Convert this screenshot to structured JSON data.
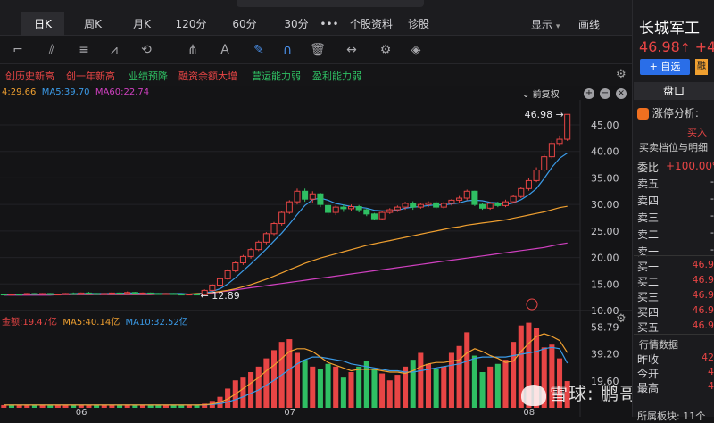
{
  "header": {
    "tabs": [
      {
        "label": "日K",
        "active": true
      },
      {
        "label": "周K",
        "active": false
      },
      {
        "label": "月K",
        "active": false
      },
      {
        "label": "120分",
        "active": false
      },
      {
        "label": "60分",
        "active": false
      },
      {
        "label": "30分",
        "active": false
      },
      {
        "label": "•••",
        "active": false
      },
      {
        "label": "个股资料",
        "active": false
      },
      {
        "label": "诊股",
        "active": false
      }
    ],
    "display_label": "显示",
    "draw_label": "画线"
  },
  "toolbar": {
    "icons": [
      "crosshair-icon",
      "fib-fan-icon",
      "fib-lines-icon",
      "wave-icon",
      "cycle-icon",
      "pitchfork-icon",
      "text-icon",
      "brush-icon",
      "magnet-icon",
      "trash-icon",
      "measure-icon",
      "settings-icon",
      "layers-icon"
    ]
  },
  "signals": [
    "创历史新高",
    "创一年新高",
    "业绩预降",
    "融资余额大增",
    "营运能力弱",
    "盈利能力弱"
  ],
  "price_legend": {
    "ma_first": "4:29.66",
    "ma5": "MA5:39.70",
    "ma60": "MA60:22.74",
    "adjust": "前复权"
  },
  "volume_legend": {
    "amount": "金额:19.47亿",
    "ma5": "MA5:40.14亿",
    "ma10": "MA10:32.52亿"
  },
  "stock": {
    "name": "长城军工",
    "price": "46.98",
    "change": "+4.",
    "add_watch": "+ 自选",
    "margin": "融"
  },
  "panel": {
    "title": "盘口",
    "limit_up_label": "涨停分析:",
    "buy_tag": "买入",
    "order_book_title": "买卖档位与明细",
    "ratio_label": "委比",
    "ratio_value": "+100.00%",
    "asks": [
      {
        "label": "卖五",
        "value": "-"
      },
      {
        "label": "卖四",
        "value": "-"
      },
      {
        "label": "卖三",
        "value": "-"
      },
      {
        "label": "卖二",
        "value": "-"
      },
      {
        "label": "卖一",
        "value": "-"
      }
    ],
    "bids": [
      {
        "label": "买一",
        "value": "46.9"
      },
      {
        "label": "买二",
        "value": "46.9"
      },
      {
        "label": "买三",
        "value": "46.9"
      },
      {
        "label": "买四",
        "value": "46.9"
      },
      {
        "label": "买五",
        "value": "46.9"
      }
    ],
    "quote_title": "行情数据",
    "quotes": [
      {
        "label": "昨收",
        "value": "42"
      },
      {
        "label": "今开",
        "value": "4"
      },
      {
        "label": "最高",
        "value": "4"
      }
    ],
    "sector_label": "所属板块: 11个"
  },
  "watermark": "雪球: 鹏哥投研",
  "chart_data": [
    {
      "type": "candlestick",
      "yaxis_labels": [
        "45.00",
        "40.00",
        "35.00",
        "30.00",
        "25.00",
        "20.00",
        "15.00",
        "10.00"
      ],
      "ylim": [
        10,
        47.5
      ],
      "xaxis_labels": [
        "06",
        "07",
        "08"
      ],
      "annotations": {
        "high": "46.98",
        "low": "12.89"
      },
      "candles": [
        [
          13.1,
          13.0,
          12.9,
          13.2
        ],
        [
          13.0,
          13.1,
          12.9,
          13.2
        ],
        [
          13.1,
          13.0,
          12.9,
          13.2
        ],
        [
          13.0,
          13.2,
          12.9,
          13.3
        ],
        [
          13.2,
          13.1,
          13.0,
          13.3
        ],
        [
          13.1,
          13.2,
          13.0,
          13.3
        ],
        [
          13.2,
          13.0,
          12.9,
          13.3
        ],
        [
          13.0,
          13.1,
          12.9,
          13.2
        ],
        [
          13.1,
          13.2,
          13.0,
          13.3
        ],
        [
          13.2,
          13.1,
          13.0,
          13.4
        ],
        [
          13.1,
          13.3,
          13.0,
          13.4
        ],
        [
          13.3,
          13.2,
          13.1,
          13.5
        ],
        [
          13.2,
          13.1,
          13.0,
          13.3
        ],
        [
          13.1,
          13.2,
          13.0,
          13.3
        ],
        [
          13.2,
          13.3,
          13.1,
          13.5
        ],
        [
          13.3,
          13.2,
          13.1,
          13.4
        ],
        [
          13.2,
          13.4,
          13.1,
          13.6
        ],
        [
          13.4,
          13.2,
          13.1,
          13.5
        ],
        [
          13.2,
          13.3,
          13.1,
          13.4
        ],
        [
          13.3,
          13.2,
          13.1,
          13.4
        ],
        [
          13.2,
          13.1,
          13.0,
          13.3
        ],
        [
          13.1,
          13.2,
          13.0,
          13.3
        ],
        [
          13.2,
          13.1,
          13.0,
          13.3
        ],
        [
          13.1,
          13.0,
          12.9,
          13.2
        ],
        [
          13.0,
          13.1,
          12.9,
          13.2
        ],
        [
          13.1,
          13.0,
          12.89,
          13.2
        ],
        [
          13.0,
          13.8,
          12.9,
          14.0
        ],
        [
          13.8,
          14.8,
          13.6,
          15.0
        ],
        [
          14.8,
          16.0,
          14.6,
          16.3
        ],
        [
          16.0,
          17.5,
          15.8,
          17.8
        ],
        [
          17.5,
          19.0,
          17.2,
          19.3
        ],
        [
          19.0,
          20.2,
          18.6,
          20.5
        ],
        [
          20.2,
          21.5,
          19.8,
          21.8
        ],
        [
          21.5,
          22.9,
          21.2,
          23.2
        ],
        [
          22.9,
          24.5,
          22.5,
          24.8
        ],
        [
          24.5,
          26.4,
          24.2,
          26.7
        ],
        [
          26.4,
          28.5,
          26.0,
          28.8
        ],
        [
          28.5,
          30.5,
          28.2,
          30.8
        ],
        [
          30.5,
          32.5,
          30.0,
          33.0
        ],
        [
          32.5,
          31.0,
          30.5,
          33.0
        ],
        [
          31.0,
          32.0,
          30.2,
          32.5
        ],
        [
          32.0,
          30.0,
          29.5,
          32.2
        ],
        [
          29.8,
          28.5,
          28.0,
          30.2
        ],
        [
          28.5,
          29.5,
          28.0,
          29.8
        ],
        [
          29.5,
          29.2,
          28.6,
          30.0
        ],
        [
          29.2,
          29.6,
          28.8,
          30.0
        ],
        [
          29.6,
          29.0,
          28.5,
          29.9
        ],
        [
          29.0,
          28.2,
          27.8,
          29.2
        ],
        [
          28.2,
          27.3,
          27.0,
          28.4
        ],
        [
          27.3,
          28.5,
          27.0,
          28.8
        ],
        [
          28.5,
          29.0,
          28.2,
          29.3
        ],
        [
          29.0,
          29.5,
          28.6,
          29.8
        ],
        [
          29.5,
          30.2,
          29.0,
          30.5
        ],
        [
          30.2,
          29.5,
          29.0,
          30.6
        ],
        [
          29.5,
          30.0,
          29.2,
          30.3
        ],
        [
          30.0,
          30.3,
          29.5,
          30.6
        ],
        [
          30.3,
          29.5,
          29.2,
          30.6
        ],
        [
          29.5,
          30.2,
          29.2,
          30.5
        ],
        [
          30.2,
          30.8,
          29.8,
          31.0
        ],
        [
          30.8,
          31.2,
          30.3,
          31.6
        ],
        [
          31.2,
          32.5,
          30.8,
          32.8
        ],
        [
          32.5,
          30.0,
          29.7,
          32.6
        ],
        [
          30.0,
          29.3,
          29.0,
          30.2
        ],
        [
          29.3,
          30.2,
          29.0,
          30.5
        ],
        [
          30.2,
          29.8,
          29.5,
          30.5
        ],
        [
          29.8,
          30.5,
          29.5,
          30.9
        ],
        [
          30.5,
          31.5,
          30.2,
          31.8
        ],
        [
          31.5,
          33.0,
          31.2,
          33.3
        ],
        [
          33.0,
          34.5,
          32.6,
          35.0
        ],
        [
          34.5,
          36.5,
          34.2,
          37.0
        ],
        [
          36.5,
          39.0,
          36.2,
          39.4
        ],
        [
          39.0,
          41.5,
          38.6,
          42.0
        ],
        [
          41.5,
          42.3,
          41.0,
          43.0
        ],
        [
          42.3,
          46.98,
          42.0,
          46.98
        ]
      ],
      "ma5": [
        13.1,
        13.1,
        13.1,
        13.1,
        13.1,
        13.1,
        13.1,
        13.1,
        13.1,
        13.2,
        13.2,
        13.2,
        13.2,
        13.2,
        13.2,
        13.2,
        13.3,
        13.3,
        13.2,
        13.2,
        13.2,
        13.2,
        13.2,
        13.2,
        13.1,
        13.1,
        13.3,
        13.6,
        14.1,
        15.0,
        16.2,
        17.5,
        18.8,
        20.2,
        21.6,
        23.1,
        24.6,
        26.3,
        28.1,
        29.8,
        30.9,
        31.2,
        30.8,
        30.2,
        29.9,
        29.6,
        29.5,
        29.3,
        28.9,
        28.8,
        28.8,
        28.9,
        29.3,
        29.5,
        29.6,
        29.8,
        29.9,
        29.9,
        30.1,
        30.3,
        30.7,
        30.8,
        30.7,
        30.4,
        30.3,
        30.0,
        30.3,
        30.9,
        31.8,
        33.0,
        34.9,
        37.0,
        38.7,
        39.7
      ],
      "ma_mid": [
        13.1,
        13.1,
        13.1,
        13.1,
        13.1,
        13.1,
        13.1,
        13.1,
        13.1,
        13.1,
        13.1,
        13.1,
        13.1,
        13.1,
        13.1,
        13.1,
        13.1,
        13.1,
        13.1,
        13.1,
        13.1,
        13.1,
        13.1,
        13.1,
        13.1,
        13.2,
        13.3,
        13.4,
        13.6,
        13.8,
        14.1,
        14.5,
        14.9,
        15.4,
        15.9,
        16.5,
        17.1,
        17.7,
        18.3,
        18.9,
        19.4,
        19.9,
        20.3,
        20.7,
        21.1,
        21.5,
        21.9,
        22.3,
        22.6,
        22.9,
        23.2,
        23.5,
        23.8,
        24.1,
        24.4,
        24.7,
        25.0,
        25.3,
        25.6,
        25.8,
        26.1,
        26.3,
        26.5,
        26.7,
        26.9,
        27.1,
        27.4,
        27.7,
        28.0,
        28.3,
        28.6,
        29.0,
        29.4,
        29.66
      ],
      "ma60": [
        12.9,
        12.9,
        12.9,
        12.9,
        12.9,
        12.9,
        12.9,
        13.0,
        13.0,
        13.0,
        13.0,
        13.0,
        13.0,
        13.0,
        13.0,
        13.0,
        13.0,
        13.0,
        13.0,
        13.0,
        13.1,
        13.1,
        13.1,
        13.1,
        13.1,
        13.1,
        13.2,
        13.3,
        13.5,
        13.7,
        13.9,
        14.1,
        14.3,
        14.5,
        14.7,
        14.9,
        15.1,
        15.3,
        15.5,
        15.7,
        15.9,
        16.1,
        16.3,
        16.5,
        16.7,
        16.9,
        17.1,
        17.3,
        17.5,
        17.7,
        17.9,
        18.1,
        18.3,
        18.5,
        18.7,
        18.9,
        19.1,
        19.3,
        19.5,
        19.7,
        19.9,
        20.1,
        20.3,
        20.5,
        20.7,
        20.9,
        21.1,
        21.3,
        21.5,
        21.7,
        21.9,
        22.2,
        22.5,
        22.74
      ]
    },
    {
      "type": "bar",
      "yaxis_labels": [
        "58.79",
        "39.20",
        "19.60"
      ],
      "ylim": [
        0,
        65
      ],
      "values": [
        2,
        2,
        2,
        2,
        2,
        2,
        2,
        2,
        2,
        2,
        2,
        2,
        2,
        2,
        2,
        2,
        2,
        2,
        2,
        2,
        2,
        2,
        2,
        2,
        2,
        2,
        3,
        5,
        8,
        14,
        20,
        22,
        26,
        30,
        36,
        42,
        48,
        50,
        40,
        35,
        30,
        28,
        32,
        30,
        22,
        26,
        30,
        34,
        28,
        25,
        20,
        24,
        30,
        35,
        40,
        32,
        28,
        30,
        40,
        45,
        55,
        38,
        26,
        30,
        32,
        35,
        48,
        60,
        62,
        58,
        44,
        46,
        36,
        19.47
      ],
      "up": [
        1,
        0,
        1,
        1,
        0,
        1,
        0,
        1,
        1,
        0,
        1,
        1,
        0,
        1,
        1,
        0,
        1,
        0,
        1,
        0,
        0,
        1,
        0,
        0,
        1,
        0,
        1,
        1,
        1,
        1,
        1,
        1,
        1,
        1,
        1,
        1,
        1,
        1,
        1,
        0,
        1,
        0,
        0,
        1,
        0,
        1,
        0,
        0,
        0,
        1,
        1,
        1,
        1,
        0,
        1,
        1,
        0,
        1,
        1,
        1,
        1,
        0,
        0,
        1,
        0,
        1,
        1,
        1,
        1,
        1,
        1,
        1,
        1,
        1
      ],
      "ma5": [
        2,
        2,
        2,
        2,
        2,
        2,
        2,
        2,
        2,
        2,
        2,
        2,
        2,
        2,
        2,
        2,
        2,
        2,
        2,
        2,
        2,
        2,
        2,
        2,
        2,
        2,
        2.2,
        2.8,
        4,
        6.4,
        10,
        14,
        18,
        22,
        27,
        31,
        36,
        41,
        43,
        43,
        41,
        37,
        33,
        31,
        29,
        27,
        28,
        28,
        28,
        27,
        26,
        26,
        25,
        27,
        30,
        32,
        33,
        33,
        34,
        35,
        40,
        43,
        41,
        38,
        36,
        33,
        34,
        41,
        47,
        52,
        54,
        52,
        49,
        40.14
      ],
      "ma10": [
        2,
        2,
        2,
        2,
        2,
        2,
        2,
        2,
        2,
        2,
        2,
        2,
        2,
        2,
        2,
        2,
        2,
        2,
        2,
        2,
        2,
        2,
        2,
        2,
        2,
        2,
        2.1,
        2.4,
        3,
        4.2,
        6,
        8,
        10.5,
        13,
        16.5,
        20,
        24,
        28,
        32,
        35,
        37,
        37,
        36,
        35,
        34,
        32,
        31,
        30,
        29,
        28,
        27,
        27,
        26,
        26,
        27,
        28,
        29,
        30,
        31,
        32,
        34,
        36,
        37,
        37,
        37,
        37,
        38,
        39,
        40,
        41,
        43,
        44,
        43,
        32.52
      ]
    }
  ]
}
